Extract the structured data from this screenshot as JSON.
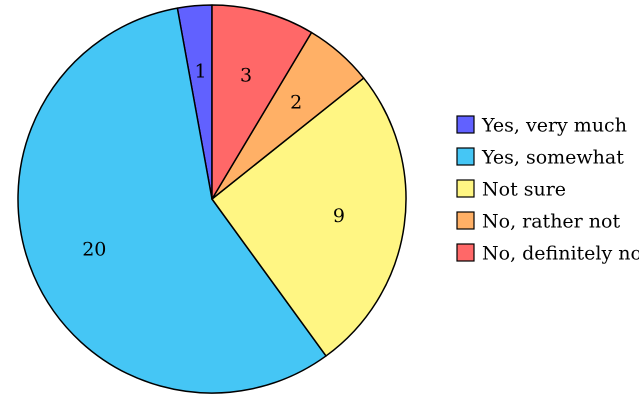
{
  "chart_data": {
    "type": "pie",
    "title": "",
    "categories": [
      "Yes, very much",
      "Yes, somewhat",
      "Not sure",
      "No, rather not",
      "No, definitely not"
    ],
    "values": [
      1,
      20,
      9,
      2,
      3
    ],
    "colors": [
      "#6161ff",
      "#45c6f5",
      "#fff683",
      "#ffb066",
      "#ff6868"
    ],
    "start_angle_deg": 0,
    "direction": "counterclockwise-from-top",
    "legend": {
      "placement": "right",
      "items": [
        {
          "label": "Yes, very much",
          "color": "#6161ff"
        },
        {
          "label": "Yes, somewhat",
          "color": "#45c6f5"
        },
        {
          "label": "Not sure",
          "color": "#fff683"
        },
        {
          "label": "No, rather not",
          "color": "#ffb066"
        },
        {
          "label": "No, definitely not",
          "color": "#ff6868"
        }
      ]
    },
    "slice_order_drawn": [
      "Yes, very much",
      "Yes, somewhat",
      "Not sure",
      "No, rather not",
      "No, definitely not"
    ]
  }
}
